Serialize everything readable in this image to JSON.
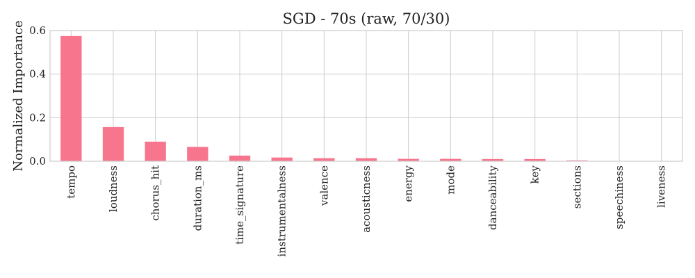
{
  "chart_data": {
    "type": "bar",
    "title": "SGD - 70s (raw, 70/30)",
    "xlabel": "",
    "ylabel": "Normalized Importance",
    "categories": [
      "tempo",
      "loudness",
      "chorus_hit",
      "duration_ms",
      "time_signature",
      "instrumentalness",
      "valence",
      "acousticness",
      "energy",
      "mode",
      "danceability",
      "key",
      "sections",
      "speechiness",
      "liveness"
    ],
    "values": [
      0.575,
      0.157,
      0.09,
      0.066,
      0.026,
      0.017,
      0.014,
      0.014,
      0.011,
      0.011,
      0.01,
      0.01,
      0.004,
      0.0,
      0.0
    ],
    "ylim": [
      0,
      0.6
    ],
    "yticks": [
      "0.0",
      "0.2",
      "0.4",
      "0.6"
    ],
    "grid": true,
    "bar_color": "#f7768e"
  }
}
